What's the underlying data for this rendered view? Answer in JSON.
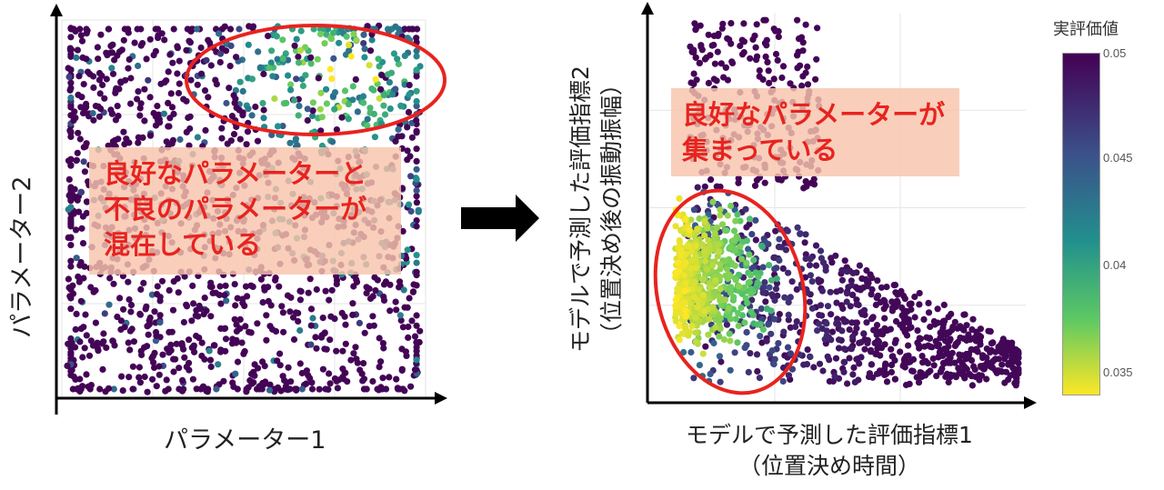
{
  "chart_data": [
    {
      "type": "scatter",
      "xlabel": "パラメーター1",
      "ylabel": "パラメーター2",
      "grid": true,
      "xlim": [
        0,
        1
      ],
      "ylim": [
        0,
        1
      ],
      "annotation": {
        "lines": [
          "良好なパラメーターと",
          "不良のパラメーターが",
          "混在している"
        ]
      },
      "point_count": 1600
    },
    {
      "type": "scatter",
      "xlabel_lines": [
        "モデルで予測した評価指標1",
        "（位置決め時間）"
      ],
      "ylabel_lines": [
        "モデルで予測した評価指標2",
        "（位置決め後の振動振幅）"
      ],
      "grid": true,
      "annotation": {
        "lines": [
          "良好なパラメーターが",
          "集まっている"
        ]
      },
      "point_count": 1600,
      "colorbar": {
        "title": "実評価値",
        "min": 0.0335,
        "max": 0.05,
        "ticks": [
          "0.05",
          "0.045",
          "0.04",
          "0.035"
        ]
      }
    }
  ],
  "colors": {
    "viridis": [
      "#440154",
      "#3b528b",
      "#21908d",
      "#5dc963",
      "#fde725"
    ],
    "highlight": "#e8231f",
    "callout_bg": "#f8c4ac"
  }
}
